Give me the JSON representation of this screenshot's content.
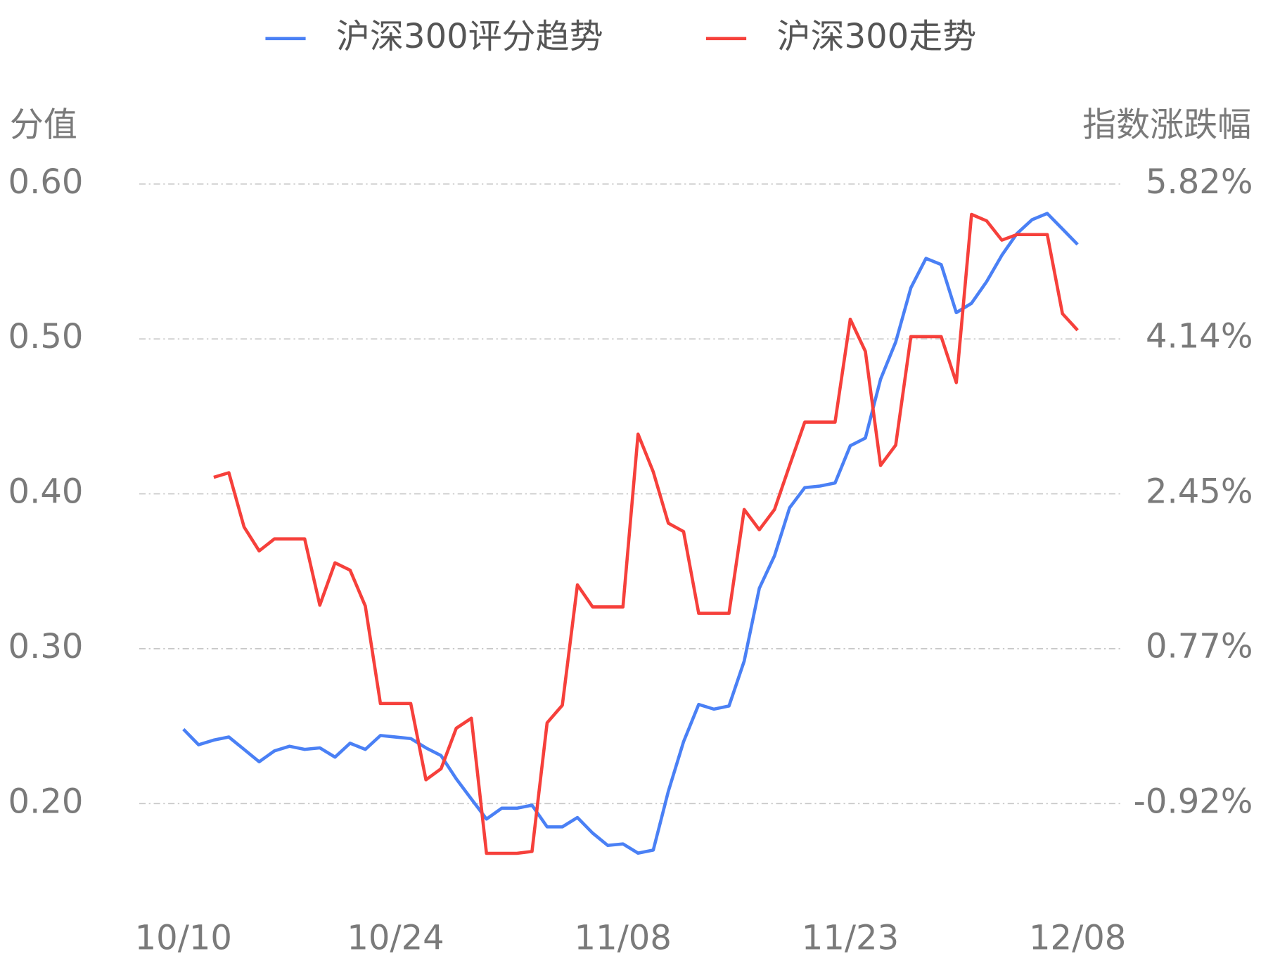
{
  "chart_data": {
    "type": "line",
    "y_label": "分值",
    "y2_label": "指数涨跌幅",
    "categories": [
      "10/10",
      null,
      null,
      null,
      null,
      null,
      null,
      null,
      null,
      null,
      null,
      null,
      null,
      null,
      "10/24",
      null,
      null,
      null,
      null,
      null,
      null,
      null,
      null,
      null,
      null,
      null,
      null,
      null,
      null,
      "11/08",
      null,
      null,
      null,
      null,
      null,
      null,
      null,
      null,
      null,
      null,
      null,
      null,
      null,
      null,
      "11/23",
      null,
      null,
      null,
      null,
      null,
      null,
      null,
      null,
      null,
      null,
      null,
      null,
      null,
      null,
      "12/08"
    ],
    "series": [
      {
        "name": "沪深300评分趋势",
        "color": "#4a80f5",
        "values": [
          0.248,
          0.238,
          0.241,
          0.243,
          0.235,
          0.227,
          0.234,
          0.237,
          0.235,
          0.236,
          0.23,
          0.239,
          0.235,
          0.244,
          0.243,
          0.242,
          0.236,
          0.231,
          0.216,
          0.203,
          0.19,
          0.197,
          0.197,
          0.199,
          0.185,
          0.185,
          0.191,
          0.181,
          0.173,
          0.174,
          0.168,
          0.17,
          0.208,
          0.24,
          0.264,
          0.261,
          0.263,
          0.292,
          0.339,
          0.36,
          0.391,
          0.404,
          0.405,
          0.407,
          0.431,
          0.436,
          0.474,
          0.498,
          0.533,
          0.552,
          0.548,
          0.517,
          0.523,
          0.537,
          0.554,
          0.568,
          0.577,
          0.581,
          0.571,
          0.561
        ]
      },
      {
        "name": "沪深300走势",
        "color": "#f6403b",
        "axis": "y2",
        "values": [
          null,
          null,
          2.63,
          2.68,
          2.09,
          1.83,
          1.96,
          1.96,
          1.96,
          1.24,
          1.7,
          1.62,
          1.23,
          0.17,
          0.17,
          0.17,
          -0.66,
          -0.54,
          -0.1,
          0.01,
          -1.46,
          -1.46,
          -1.46,
          -1.44,
          -0.04,
          0.15,
          1.46,
          1.22,
          1.22,
          1.22,
          3.1,
          2.69,
          2.13,
          2.04,
          1.15,
          1.15,
          1.15,
          2.28,
          2.06,
          2.28,
          2.76,
          3.23,
          3.23,
          3.23,
          4.35,
          4.0,
          2.76,
          2.98,
          4.16,
          4.16,
          4.16,
          3.66,
          5.49,
          5.42,
          5.21,
          5.27,
          5.27,
          5.27,
          4.41,
          4.23
        ]
      }
    ],
    "ylim": [
      0.14,
      0.6
    ],
    "yticks": [
      {
        "value": 0.2,
        "label": "0.20"
      },
      {
        "value": 0.3,
        "label": "0.30"
      },
      {
        "value": 0.4,
        "label": "0.40"
      },
      {
        "value": 0.5,
        "label": "0.50"
      },
      {
        "value": 0.6,
        "label": "0.60"
      }
    ],
    "y2lim": [
      -1.93,
      5.82
    ],
    "y2ticks": [
      {
        "value": -0.92,
        "label": "-0.92%"
      },
      {
        "value": 0.77,
        "label": "0.77%"
      },
      {
        "value": 2.45,
        "label": "2.45%"
      },
      {
        "value": 4.14,
        "label": "4.14%"
      },
      {
        "value": 5.82,
        "label": "5.82%"
      }
    ],
    "grid": true
  }
}
